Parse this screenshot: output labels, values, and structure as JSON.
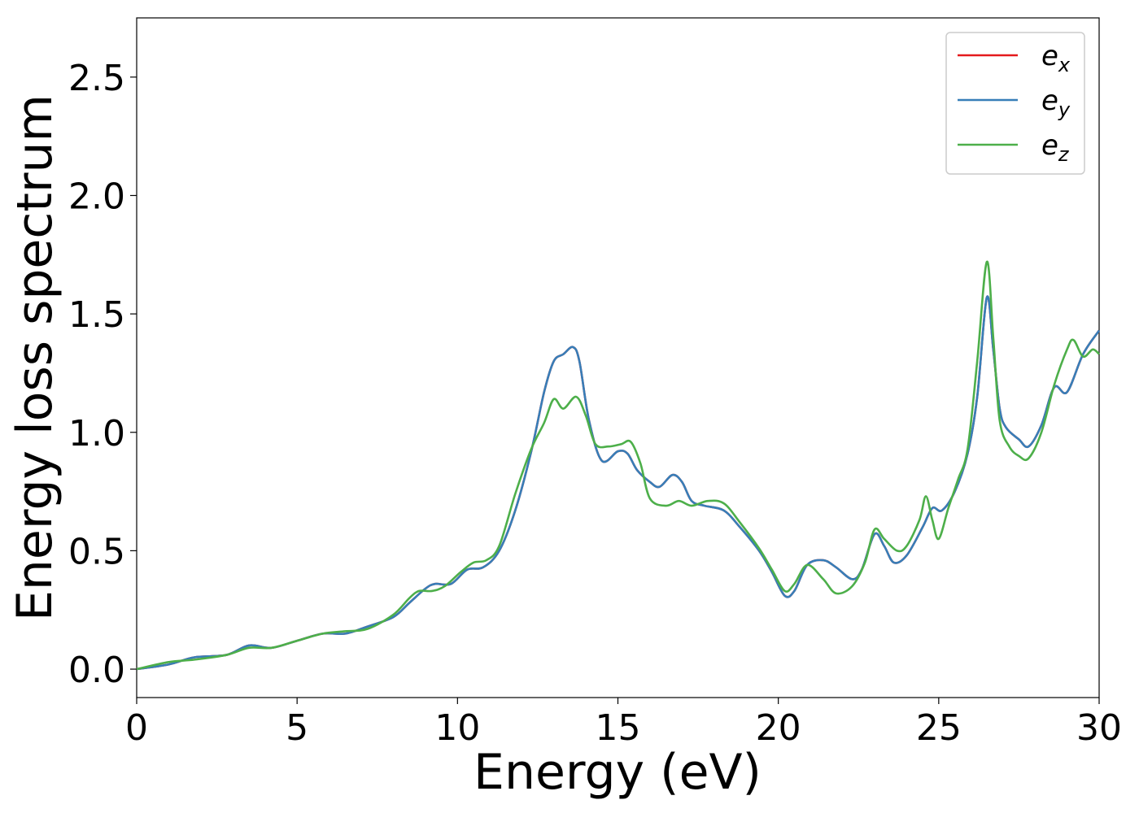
{
  "chart_data": {
    "type": "line",
    "title": "",
    "xlabel": "Energy (eV)",
    "ylabel": "Energy loss spectrum",
    "xlim": [
      0,
      30
    ],
    "ylim": [
      -0.12,
      2.75
    ],
    "xticks": [
      0,
      5,
      10,
      15,
      20,
      25,
      30
    ],
    "xtick_labels": [
      "0",
      "5",
      "10",
      "15",
      "20",
      "25",
      "30"
    ],
    "yticks": [
      0.0,
      0.5,
      1.0,
      1.5,
      2.0,
      2.5
    ],
    "ytick_labels": [
      "0.0",
      "0.5",
      "1.0",
      "1.5",
      "2.0",
      "2.5"
    ],
    "grid": false,
    "legend_position": "top-right",
    "series": [
      {
        "name": "e",
        "subscript": "x",
        "color": "#e41a1c",
        "points": [
          [
            0,
            0.0
          ],
          [
            1,
            0.02
          ],
          [
            1.8,
            0.05
          ],
          [
            2.8,
            0.06
          ],
          [
            3.5,
            0.1
          ],
          [
            4.2,
            0.09
          ],
          [
            5,
            0.12
          ],
          [
            5.8,
            0.15
          ],
          [
            6.5,
            0.15
          ],
          [
            7.2,
            0.18
          ],
          [
            8,
            0.22
          ],
          [
            8.5,
            0.28
          ],
          [
            9,
            0.34
          ],
          [
            9.3,
            0.36
          ],
          [
            9.8,
            0.36
          ],
          [
            10.3,
            0.42
          ],
          [
            10.8,
            0.43
          ],
          [
            11.3,
            0.5
          ],
          [
            11.8,
            0.67
          ],
          [
            12.3,
            0.92
          ],
          [
            12.7,
            1.17
          ],
          [
            13,
            1.3
          ],
          [
            13.3,
            1.33
          ],
          [
            13.6,
            1.36
          ],
          [
            13.8,
            1.3
          ],
          [
            14.1,
            1.05
          ],
          [
            14.5,
            0.88
          ],
          [
            15,
            0.92
          ],
          [
            15.3,
            0.91
          ],
          [
            15.6,
            0.84
          ],
          [
            16,
            0.79
          ],
          [
            16.3,
            0.77
          ],
          [
            16.7,
            0.82
          ],
          [
            17,
            0.79
          ],
          [
            17.3,
            0.71
          ],
          [
            17.7,
            0.69
          ],
          [
            18.3,
            0.67
          ],
          [
            18.8,
            0.6
          ],
          [
            19.4,
            0.5
          ],
          [
            19.8,
            0.41
          ],
          [
            20.2,
            0.31
          ],
          [
            20.5,
            0.33
          ],
          [
            20.9,
            0.44
          ],
          [
            21.4,
            0.46
          ],
          [
            21.8,
            0.43
          ],
          [
            22.3,
            0.38
          ],
          [
            22.6,
            0.42
          ],
          [
            23,
            0.57
          ],
          [
            23.3,
            0.52
          ],
          [
            23.6,
            0.45
          ],
          [
            24,
            0.48
          ],
          [
            24.5,
            0.6
          ],
          [
            24.8,
            0.68
          ],
          [
            25.1,
            0.67
          ],
          [
            25.5,
            0.75
          ],
          [
            25.9,
            0.91
          ],
          [
            26.2,
            1.15
          ],
          [
            26.5,
            1.57
          ],
          [
            26.7,
            1.35
          ],
          [
            26.9,
            1.1
          ],
          [
            27.1,
            1.02
          ],
          [
            27.5,
            0.97
          ],
          [
            27.8,
            0.94
          ],
          [
            28.2,
            1.03
          ],
          [
            28.6,
            1.19
          ],
          [
            29.0,
            1.17
          ],
          [
            29.5,
            1.33
          ],
          [
            30,
            1.43
          ]
        ]
      },
      {
        "name": "e",
        "subscript": "y",
        "color": "#377eb8",
        "points": [
          [
            0,
            0.0
          ],
          [
            1,
            0.02
          ],
          [
            1.8,
            0.05
          ],
          [
            2.8,
            0.06
          ],
          [
            3.5,
            0.1
          ],
          [
            4.2,
            0.09
          ],
          [
            5,
            0.12
          ],
          [
            5.8,
            0.15
          ],
          [
            6.5,
            0.15
          ],
          [
            7.2,
            0.18
          ],
          [
            8,
            0.22
          ],
          [
            8.5,
            0.28
          ],
          [
            9,
            0.34
          ],
          [
            9.3,
            0.36
          ],
          [
            9.8,
            0.36
          ],
          [
            10.3,
            0.42
          ],
          [
            10.8,
            0.43
          ],
          [
            11.3,
            0.5
          ],
          [
            11.8,
            0.67
          ],
          [
            12.3,
            0.92
          ],
          [
            12.7,
            1.17
          ],
          [
            13,
            1.3
          ],
          [
            13.3,
            1.33
          ],
          [
            13.6,
            1.36
          ],
          [
            13.8,
            1.3
          ],
          [
            14.1,
            1.05
          ],
          [
            14.5,
            0.88
          ],
          [
            15,
            0.92
          ],
          [
            15.3,
            0.91
          ],
          [
            15.6,
            0.84
          ],
          [
            16,
            0.79
          ],
          [
            16.3,
            0.77
          ],
          [
            16.7,
            0.82
          ],
          [
            17,
            0.79
          ],
          [
            17.3,
            0.71
          ],
          [
            17.7,
            0.69
          ],
          [
            18.3,
            0.67
          ],
          [
            18.8,
            0.6
          ],
          [
            19.4,
            0.5
          ],
          [
            19.8,
            0.41
          ],
          [
            20.2,
            0.31
          ],
          [
            20.5,
            0.33
          ],
          [
            20.9,
            0.44
          ],
          [
            21.4,
            0.46
          ],
          [
            21.8,
            0.43
          ],
          [
            22.3,
            0.38
          ],
          [
            22.6,
            0.42
          ],
          [
            23,
            0.57
          ],
          [
            23.3,
            0.52
          ],
          [
            23.6,
            0.45
          ],
          [
            24,
            0.48
          ],
          [
            24.5,
            0.6
          ],
          [
            24.8,
            0.68
          ],
          [
            25.1,
            0.67
          ],
          [
            25.5,
            0.75
          ],
          [
            25.9,
            0.91
          ],
          [
            26.2,
            1.15
          ],
          [
            26.5,
            1.57
          ],
          [
            26.7,
            1.35
          ],
          [
            26.9,
            1.1
          ],
          [
            27.1,
            1.02
          ],
          [
            27.5,
            0.97
          ],
          [
            27.8,
            0.94
          ],
          [
            28.2,
            1.03
          ],
          [
            28.6,
            1.19
          ],
          [
            29.0,
            1.17
          ],
          [
            29.5,
            1.33
          ],
          [
            30,
            1.43
          ]
        ]
      },
      {
        "name": "e",
        "subscript": "z",
        "color": "#4daf4a",
        "points": [
          [
            0,
            0.0
          ],
          [
            1,
            0.03
          ],
          [
            1.8,
            0.04
          ],
          [
            2.8,
            0.06
          ],
          [
            3.5,
            0.09
          ],
          [
            4.2,
            0.09
          ],
          [
            5,
            0.12
          ],
          [
            5.8,
            0.15
          ],
          [
            6.5,
            0.16
          ],
          [
            7.2,
            0.17
          ],
          [
            8,
            0.23
          ],
          [
            8.5,
            0.3
          ],
          [
            8.8,
            0.33
          ],
          [
            9.2,
            0.33
          ],
          [
            9.6,
            0.35
          ],
          [
            10.1,
            0.41
          ],
          [
            10.5,
            0.45
          ],
          [
            10.9,
            0.46
          ],
          [
            11.3,
            0.52
          ],
          [
            11.8,
            0.74
          ],
          [
            12.3,
            0.93
          ],
          [
            12.7,
            1.04
          ],
          [
            13,
            1.14
          ],
          [
            13.3,
            1.1
          ],
          [
            13.7,
            1.15
          ],
          [
            14,
            1.07
          ],
          [
            14.3,
            0.95
          ],
          [
            14.7,
            0.94
          ],
          [
            15.1,
            0.95
          ],
          [
            15.4,
            0.96
          ],
          [
            15.7,
            0.87
          ],
          [
            16,
            0.72
          ],
          [
            16.5,
            0.69
          ],
          [
            16.9,
            0.71
          ],
          [
            17.3,
            0.69
          ],
          [
            17.8,
            0.71
          ],
          [
            18.3,
            0.7
          ],
          [
            18.8,
            0.62
          ],
          [
            19.4,
            0.51
          ],
          [
            19.8,
            0.42
          ],
          [
            20.2,
            0.33
          ],
          [
            20.5,
            0.36
          ],
          [
            20.9,
            0.44
          ],
          [
            21.4,
            0.38
          ],
          [
            21.8,
            0.32
          ],
          [
            22.3,
            0.35
          ],
          [
            22.7,
            0.45
          ],
          [
            23,
            0.59
          ],
          [
            23.3,
            0.55
          ],
          [
            23.7,
            0.5
          ],
          [
            24,
            0.52
          ],
          [
            24.4,
            0.63
          ],
          [
            24.6,
            0.73
          ],
          [
            24.8,
            0.63
          ],
          [
            25.0,
            0.55
          ],
          [
            25.3,
            0.68
          ],
          [
            25.6,
            0.8
          ],
          [
            25.9,
            0.93
          ],
          [
            26.2,
            1.3
          ],
          [
            26.5,
            1.72
          ],
          [
            26.7,
            1.4
          ],
          [
            26.9,
            1.05
          ],
          [
            27.2,
            0.94
          ],
          [
            27.5,
            0.9
          ],
          [
            27.8,
            0.89
          ],
          [
            28.2,
            1.0
          ],
          [
            28.6,
            1.2
          ],
          [
            29.0,
            1.35
          ],
          [
            29.2,
            1.39
          ],
          [
            29.5,
            1.32
          ],
          [
            29.8,
            1.35
          ],
          [
            30,
            1.33
          ]
        ]
      }
    ]
  }
}
